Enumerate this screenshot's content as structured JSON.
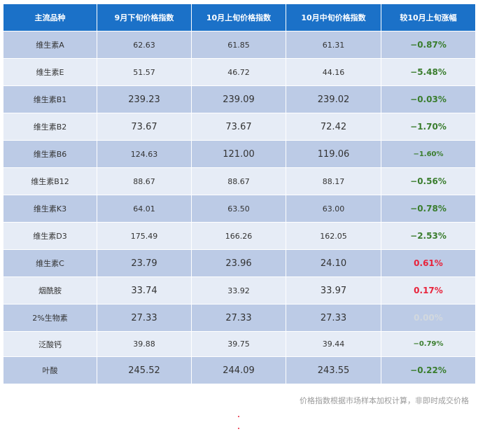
{
  "table": {
    "headers": [
      "主流品种",
      "9月下旬价格指数",
      "10月上旬价格指数",
      "10月中旬价格指数",
      "较10月上旬涨幅"
    ],
    "rows": [
      {
        "name": "维生素A",
        "sep": "62.63",
        "oct1": "61.85",
        "oct2": "61.31",
        "change": "−0.87%"
      },
      {
        "name": "维生素E",
        "sep": "51.57",
        "oct1": "46.72",
        "oct2": "44.16",
        "change": "−5.48%"
      },
      {
        "name": "维生素B1",
        "sep": "239.23",
        "oct1": "239.09",
        "oct2": "239.02",
        "change": "−0.03%"
      },
      {
        "name": "维生素B2",
        "sep": "73.67",
        "oct1": "73.67",
        "oct2": "72.42",
        "change": "−1.70%"
      },
      {
        "name": "维生素B6",
        "sep": "124.63",
        "oct1": "121.00",
        "oct2": "119.06",
        "change": "−1.60%"
      },
      {
        "name": "维生素B12",
        "sep": "88.67",
        "oct1": "88.67",
        "oct2": "88.17",
        "change": "−0.56%"
      },
      {
        "name": "维生素K3",
        "sep": "64.01",
        "oct1": "63.50",
        "oct2": "63.00",
        "change": "−0.78%"
      },
      {
        "name": "维生素D3",
        "sep": "175.49",
        "oct1": "166.26",
        "oct2": "162.05",
        "change": "−2.53%"
      },
      {
        "name": "维生素C",
        "sep": "23.79",
        "oct1": "23.96",
        "oct2": "24.10",
        "change": "0.61%"
      },
      {
        "name": "烟酰胺",
        "sep": "33.74",
        "oct1": "33.92",
        "oct2": "33.97",
        "change": "0.17%"
      },
      {
        "name": "2%生物素",
        "sep": "27.33",
        "oct1": "27.33",
        "oct2": "27.33",
        "change": "0.00%"
      },
      {
        "name": "泛酸钙",
        "sep": "39.88",
        "oct1": "39.75",
        "oct2": "39.44",
        "change": "−0.79%"
      },
      {
        "name": "叶酸",
        "sep": "245.52",
        "oct1": "244.09",
        "oct2": "243.55",
        "change": "−0.22%"
      }
    ]
  },
  "footnote": "价格指数根据市场样本加权计算，非即时成交价格",
  "colors": {
    "header_bg": "#1b71c8",
    "row_dark": "#bccbe6",
    "row_light": "#e6ecf6",
    "negative": "#3a7d2e",
    "positive": "#e8233b",
    "zero": "#d2d8de"
  }
}
